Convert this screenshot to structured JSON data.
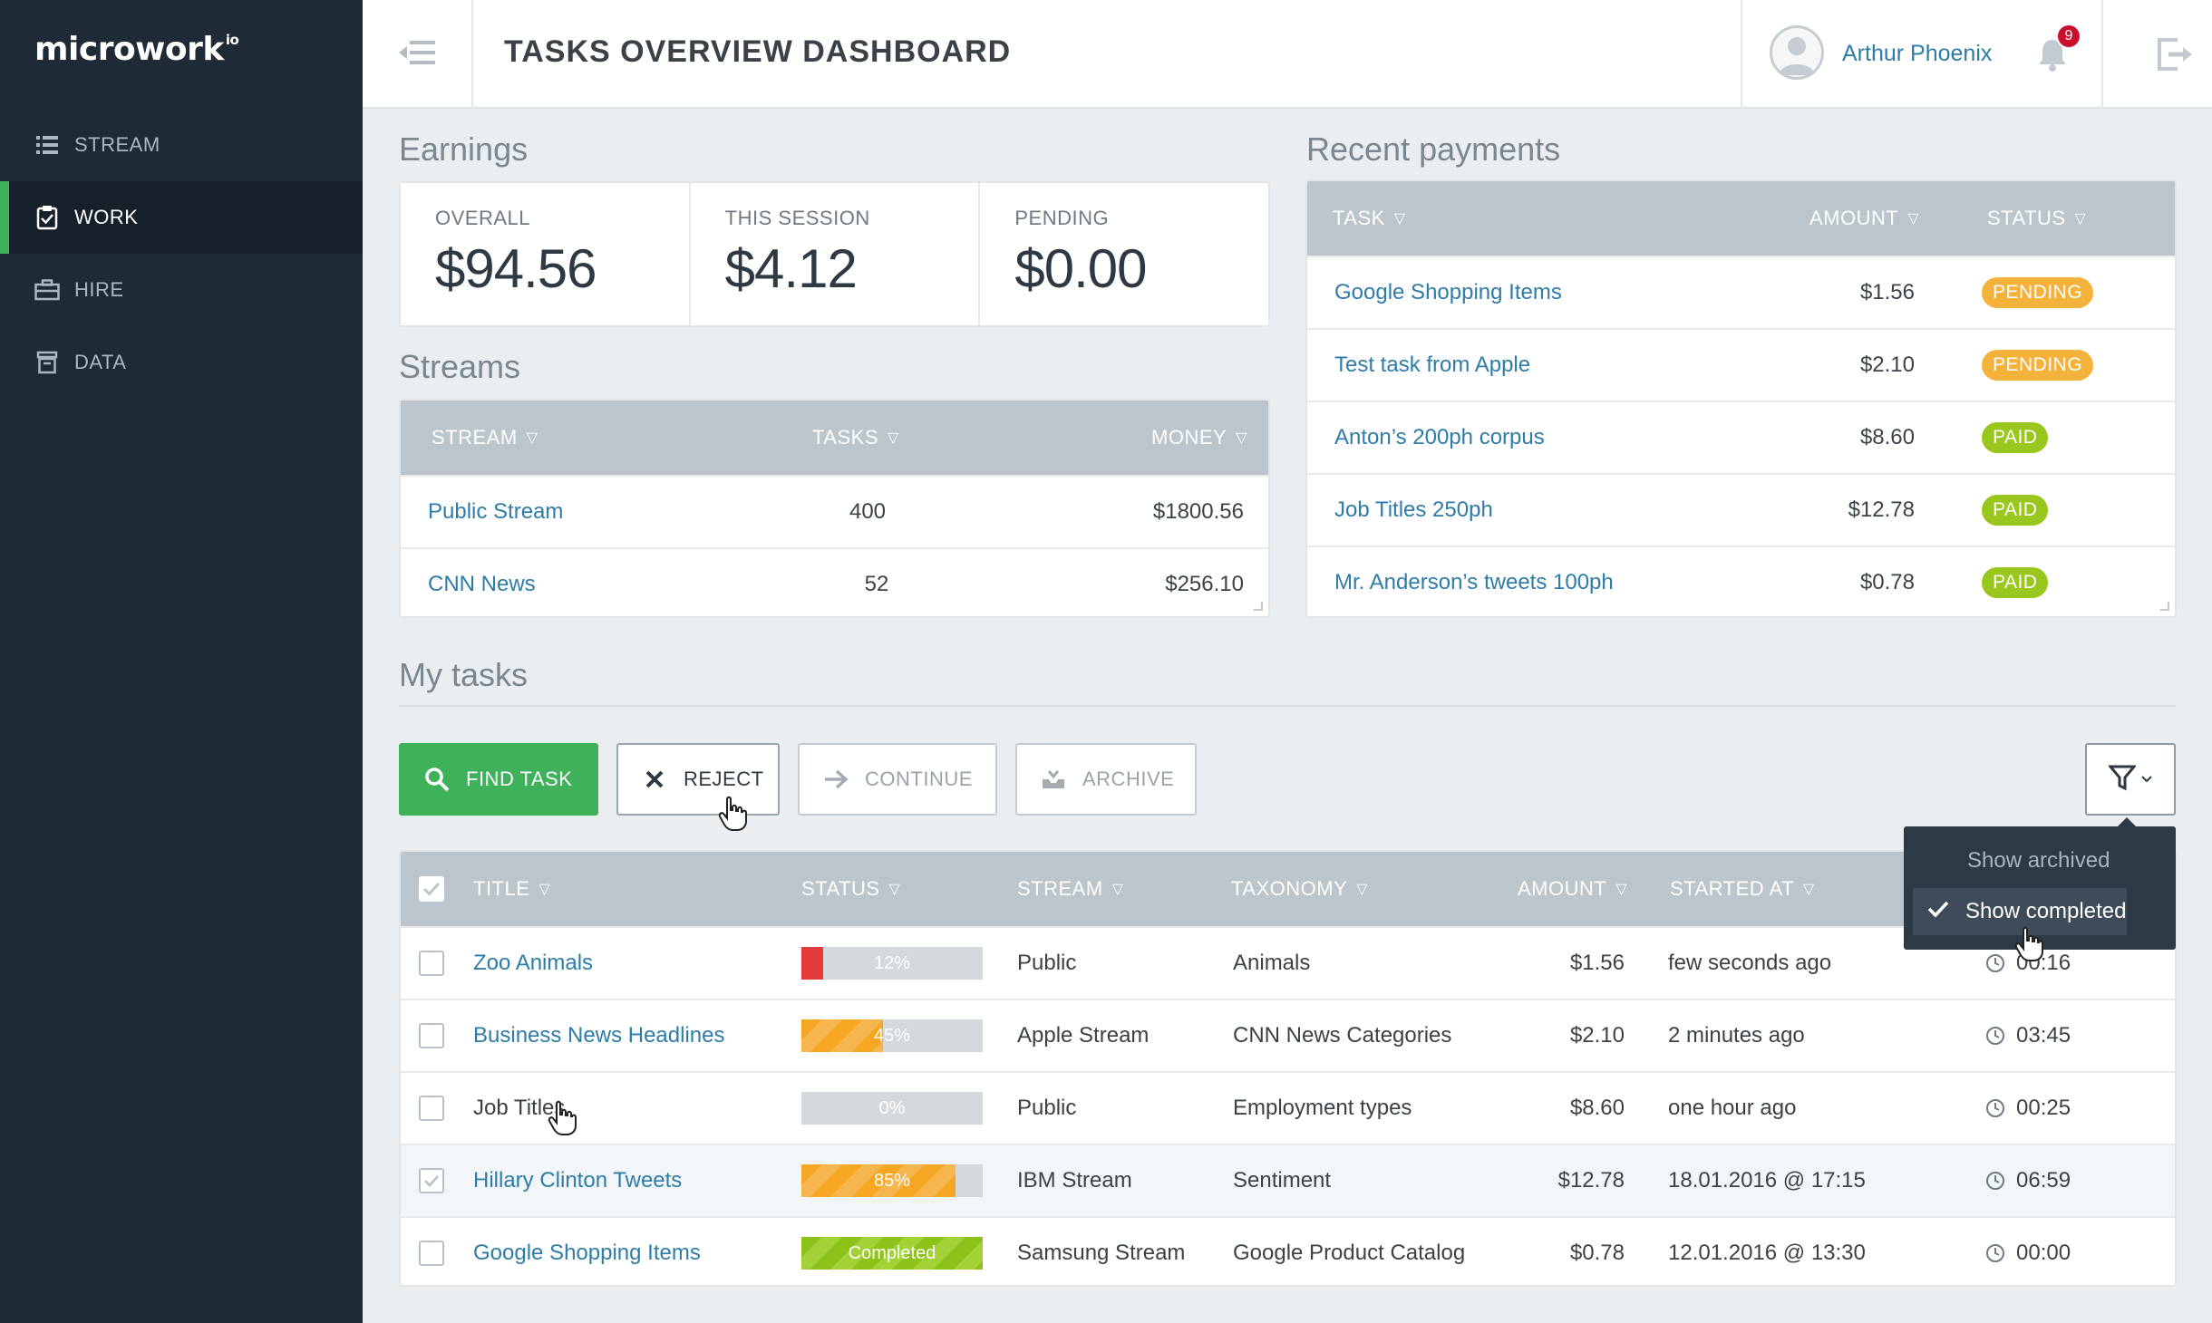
{
  "sidebar": {
    "logo": "microwork",
    "logo_suffix": "io",
    "items": [
      {
        "label": "STREAM",
        "icon": "list-icon"
      },
      {
        "label": "WORK",
        "icon": "clipboard-check-icon",
        "active": true
      },
      {
        "label": "HIRE",
        "icon": "briefcase-icon"
      },
      {
        "label": "DATA",
        "icon": "database-icon"
      }
    ]
  },
  "header": {
    "title": "TASKS OVERVIEW DASHBOARD",
    "user_name": "Arthur Phoenix",
    "notifications": "9"
  },
  "earnings": {
    "heading": "Earnings",
    "cells": [
      {
        "label": "OVERALL",
        "value": "$94.56"
      },
      {
        "label": "THIS SESSION",
        "value": "$4.12"
      },
      {
        "label": "PENDING",
        "value": "$0.00"
      }
    ]
  },
  "streams": {
    "heading": "Streams",
    "columns": [
      "STREAM",
      "TASKS",
      "MONEY"
    ],
    "rows": [
      {
        "stream": "Public Stream",
        "tasks": "400",
        "money": "$1800.56"
      },
      {
        "stream": "CNN News",
        "tasks": "52",
        "money": "$256.10"
      }
    ]
  },
  "payments": {
    "heading": "Recent payments",
    "columns": [
      "TASK",
      "AMOUNT",
      "STATUS"
    ],
    "rows": [
      {
        "task": "Google Shopping Items",
        "amount": "$1.56",
        "status": "PENDING"
      },
      {
        "task": "Test task from Apple",
        "amount": "$2.10",
        "status": "PENDING"
      },
      {
        "task": "Anton’s 200ph corpus",
        "amount": "$8.60",
        "status": "PAID"
      },
      {
        "task": "Job Titles 250ph",
        "amount": "$12.78",
        "status": "PAID"
      },
      {
        "task": "Mr. Anderson’s tweets 100ph",
        "amount": "$0.78",
        "status": "PAID"
      }
    ]
  },
  "tasks": {
    "heading": "My tasks",
    "buttons": {
      "find": "FIND TASK",
      "reject": "REJECT",
      "continue": "CONTINUE",
      "archive": "ARCHIVE"
    },
    "columns": [
      "TITLE",
      "STATUS",
      "STREAM",
      "TAXONOMY",
      "AMOUNT",
      "STARTED AT"
    ],
    "rows": [
      {
        "title": "Zoo Animals",
        "progress": 12,
        "progress_label": "12%",
        "fill": "red",
        "stream": "Public",
        "taxonomy": "Animals",
        "amount": "$1.56",
        "started": "few seconds ago",
        "time": "00:16",
        "checked": false,
        "link": true
      },
      {
        "title": "Business News Headlines",
        "progress": 45,
        "progress_label": "45%",
        "fill": "orange",
        "stream": "Apple Stream",
        "taxonomy": "CNN News Categories",
        "amount": "$2.10",
        "started": "2 minutes ago",
        "time": "03:45",
        "checked": false,
        "link": true
      },
      {
        "title": "Job Titles",
        "progress": 0,
        "progress_label": "0%",
        "fill": "orange",
        "stream": "Public",
        "taxonomy": "Employment types",
        "amount": "$8.60",
        "started": "one hour ago",
        "time": "00:25",
        "checked": false,
        "link": false
      },
      {
        "title": "Hillary Clinton Tweets",
        "progress": 85,
        "progress_label": "85%",
        "fill": "orange",
        "stream": "IBM Stream",
        "taxonomy": "Sentiment",
        "amount": "$12.78",
        "started": "18.01.2016 @ 17:15",
        "time": "06:59",
        "checked": true,
        "link": true
      },
      {
        "title": "Google Shopping Items",
        "progress": 100,
        "progress_label": "Completed",
        "fill": "green",
        "stream": "Samsung Stream",
        "taxonomy": "Google Product Catalog",
        "amount": "$0.78",
        "started": "12.01.2016 @ 13:30",
        "time": "00:00",
        "checked": false,
        "link": true
      }
    ],
    "filter_menu": {
      "show_archived": "Show archived",
      "show_completed": "Show completed"
    }
  },
  "colors": {
    "sidebar": "#1e2b36",
    "accent_green": "#3eb15a",
    "link": "#2e7ca8",
    "pending": "#f5b23b",
    "paid": "#9ac71d"
  }
}
